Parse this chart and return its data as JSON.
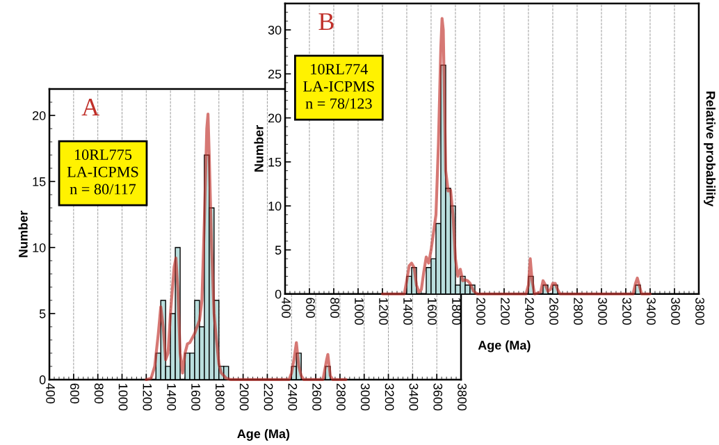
{
  "chart_data": [
    {
      "type": "histogram",
      "xlabel": "Age (Ma)",
      "ylabel": "Number",
      "xlim": [
        400,
        3800
      ],
      "ylim": [
        0,
        22
      ],
      "xticks": [
        400,
        600,
        800,
        1000,
        1200,
        1400,
        1600,
        1800,
        2000,
        2200,
        2400,
        2600,
        2800,
        3000,
        3200,
        3400,
        3600,
        3800
      ],
      "yticks": [
        0,
        5,
        10,
        15,
        20
      ],
      "grid": "x",
      "annotations": [
        "A",
        "10RL775\nLA-ICPMS\nn = 80/117"
      ],
      "series": [
        {
          "type": "histogram",
          "color": "#b9dedd",
          "bins": [
            1280,
            1320,
            1360,
            1400,
            1440,
            1480,
            1520,
            1560,
            1600,
            1640,
            1680,
            1720,
            1760,
            1800,
            1840,
            1880,
            1920,
            1960,
            2000,
            2040,
            2080,
            2120,
            2160,
            2200,
            2240,
            2280,
            2320,
            2360,
            2400,
            2440,
            2480,
            2520,
            2560,
            2600,
            2640,
            2680,
            2720
          ],
          "values": [
            2,
            6,
            1,
            5,
            10,
            0,
            2,
            2,
            6,
            4,
            17,
            13,
            6,
            1,
            1,
            0,
            0,
            0,
            0,
            0,
            0,
            0,
            0,
            0,
            0,
            0,
            0,
            0,
            1,
            2,
            0,
            0,
            0,
            0,
            0,
            1
          ]
        },
        {
          "type": "line",
          "color": "#c0302a",
          "x": [
            1200,
            1240,
            1270,
            1300,
            1320,
            1340,
            1360,
            1380,
            1400,
            1430,
            1445,
            1460,
            1480,
            1500,
            1520,
            1540,
            1560,
            1600,
            1640,
            1660,
            1680,
            1700,
            1710,
            1720,
            1740,
            1760,
            1780,
            1800,
            1820,
            1860,
            1900,
            2380,
            2400,
            2420,
            2440,
            2460,
            2480,
            2500,
            2660,
            2690,
            2700,
            2720,
            2740,
            2850
          ],
          "values": [
            0,
            0.1,
            1,
            3.5,
            5.5,
            4,
            1.5,
            2,
            5,
            8.5,
            9.2,
            7,
            2,
            0.5,
            2,
            2.7,
            2.8,
            3.5,
            4.5,
            6,
            12,
            19,
            20.1,
            17,
            10,
            5,
            3,
            1.2,
            0.5,
            0.1,
            0,
            0,
            0.5,
            1.5,
            2.8,
            1,
            0.3,
            0,
            0,
            1.5,
            1.9,
            0.3,
            0,
            0
          ]
        }
      ]
    },
    {
      "type": "histogram",
      "xlabel": "Age (Ma)",
      "ylabel": "Number",
      "y2label": "Relative probability",
      "xlim": [
        400,
        3800
      ],
      "ylim": [
        0,
        33
      ],
      "xticks": [
        400,
        600,
        800,
        1000,
        1200,
        1400,
        1600,
        1800,
        2000,
        2200,
        2400,
        2600,
        2800,
        3000,
        3200,
        3400,
        3600,
        3800
      ],
      "yticks": [
        0,
        5,
        10,
        15,
        20,
        25,
        30
      ],
      "grid": "x",
      "annotations": [
        "B",
        "10RL774\nLA-ICPMS\nn = 78/123"
      ],
      "series": [
        {
          "type": "histogram",
          "color": "#b9dedd",
          "bins": [
            1400,
            1440,
            1480,
            1520,
            1560,
            1600,
            1640,
            1680,
            1720,
            1760,
            1800,
            1840,
            1880,
            1920,
            1960,
            2000,
            2040,
            2080,
            2120,
            2160,
            2200,
            2240,
            2280,
            2320,
            2360,
            2400,
            2440,
            2480,
            2520,
            2560,
            2600,
            2640,
            2680,
            2720,
            2760,
            2800,
            2840,
            2880,
            2920,
            2960,
            3000,
            3040,
            3080,
            3120,
            3160,
            3200,
            3240,
            3280,
            3320
          ],
          "values": [
            2,
            3,
            0,
            0,
            3,
            4,
            8,
            26,
            12,
            10,
            1,
            2,
            1,
            1,
            0,
            0,
            0,
            0,
            0,
            0,
            0,
            0,
            0,
            0,
            0,
            2,
            0,
            0,
            1,
            0,
            1,
            0,
            0,
            0,
            0,
            0,
            0,
            0,
            0,
            0,
            0,
            0,
            0,
            0,
            0,
            0,
            0,
            1
          ]
        },
        {
          "type": "line",
          "color": "#c0302a",
          "x": [
            1200,
            1380,
            1400,
            1420,
            1440,
            1460,
            1480,
            1500,
            1520,
            1540,
            1560,
            1580,
            1600,
            1640,
            1660,
            1680,
            1690,
            1700,
            1710,
            1720,
            1740,
            1760,
            1780,
            1800,
            1820,
            1840,
            1860,
            1880,
            1900,
            1920,
            1950,
            1980,
            2380,
            2400,
            2415,
            2430,
            2450,
            2500,
            2520,
            2540,
            2560,
            2580,
            2600,
            2620,
            2640,
            2660,
            3260,
            3280,
            3295,
            3310,
            3330,
            3400
          ],
          "values": [
            0,
            0,
            1.5,
            3.2,
            3.5,
            3,
            1,
            0.2,
            0.5,
            2.5,
            4.2,
            3.5,
            5,
            9,
            17,
            28,
            31.3,
            30,
            22,
            14,
            11.7,
            11.8,
            9,
            4,
            2,
            2.8,
            1.5,
            1.6,
            1.5,
            1.2,
            0.3,
            0,
            0,
            1,
            4,
            1.5,
            0,
            0.2,
            1.5,
            1,
            0.3,
            0.5,
            1.2,
            1.2,
            0.5,
            0,
            0,
            1.2,
            1.8,
            1,
            0,
            0
          ]
        }
      ]
    }
  ]
}
